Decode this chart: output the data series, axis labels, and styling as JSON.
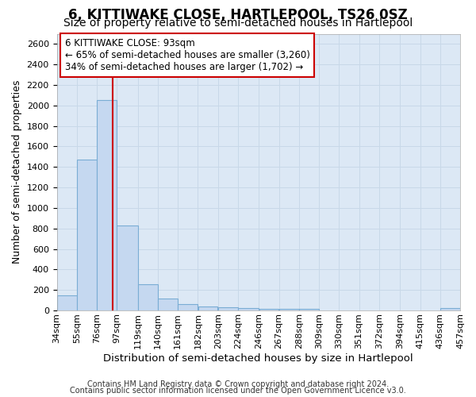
{
  "title": "6, KITTIWAKE CLOSE, HARTLEPOOL, TS26 0SZ",
  "subtitle": "Size of property relative to semi-detached houses in Hartlepool",
  "xlabel": "Distribution of semi-detached houses by size in Hartlepool",
  "ylabel": "Number of semi-detached properties",
  "footnote1": "Contains HM Land Registry data © Crown copyright and database right 2024.",
  "footnote2": "Contains public sector information licensed under the Open Government Licence v3.0.",
  "bar_left_edges": [
    34,
    55,
    76,
    97,
    119,
    140,
    161,
    182,
    203,
    224,
    246,
    267,
    288,
    309,
    330,
    351,
    372,
    394,
    415,
    436
  ],
  "bar_widths": [
    21,
    21,
    21,
    22,
    21,
    21,
    21,
    21,
    21,
    22,
    21,
    21,
    21,
    21,
    21,
    21,
    22,
    21,
    21,
    21
  ],
  "bar_heights": [
    150,
    1470,
    2050,
    830,
    255,
    115,
    65,
    40,
    30,
    22,
    18,
    15,
    12,
    0,
    0,
    0,
    0,
    0,
    0,
    25
  ],
  "tick_labels": [
    "34sqm",
    "55sqm",
    "76sqm",
    "97sqm",
    "119sqm",
    "140sqm",
    "161sqm",
    "182sqm",
    "203sqm",
    "224sqm",
    "246sqm",
    "267sqm",
    "288sqm",
    "309sqm",
    "330sqm",
    "351sqm",
    "372sqm",
    "394sqm",
    "415sqm",
    "436sqm",
    "457sqm"
  ],
  "bar_color": "#c5d8f0",
  "bar_edge_color": "#7aadd4",
  "vline_x": 93,
  "vline_color": "#cc0000",
  "annotation_text": "6 KITTIWAKE CLOSE: 93sqm\n← 65% of semi-detached houses are smaller (3,260)\n34% of semi-detached houses are larger (1,702) →",
  "annotation_box_color": "#ffffff",
  "annotation_box_edge_color": "#cc0000",
  "ylim": [
    0,
    2700
  ],
  "yticks": [
    0,
    200,
    400,
    600,
    800,
    1000,
    1200,
    1400,
    1600,
    1800,
    2000,
    2200,
    2400,
    2600
  ],
  "grid_color": "#c8d8e8",
  "bg_color": "#dce8f5",
  "title_fontsize": 12,
  "subtitle_fontsize": 10,
  "label_fontsize": 9.5,
  "tick_fontsize": 8,
  "annotation_fontsize": 8.5,
  "ylabel_fontsize": 9
}
